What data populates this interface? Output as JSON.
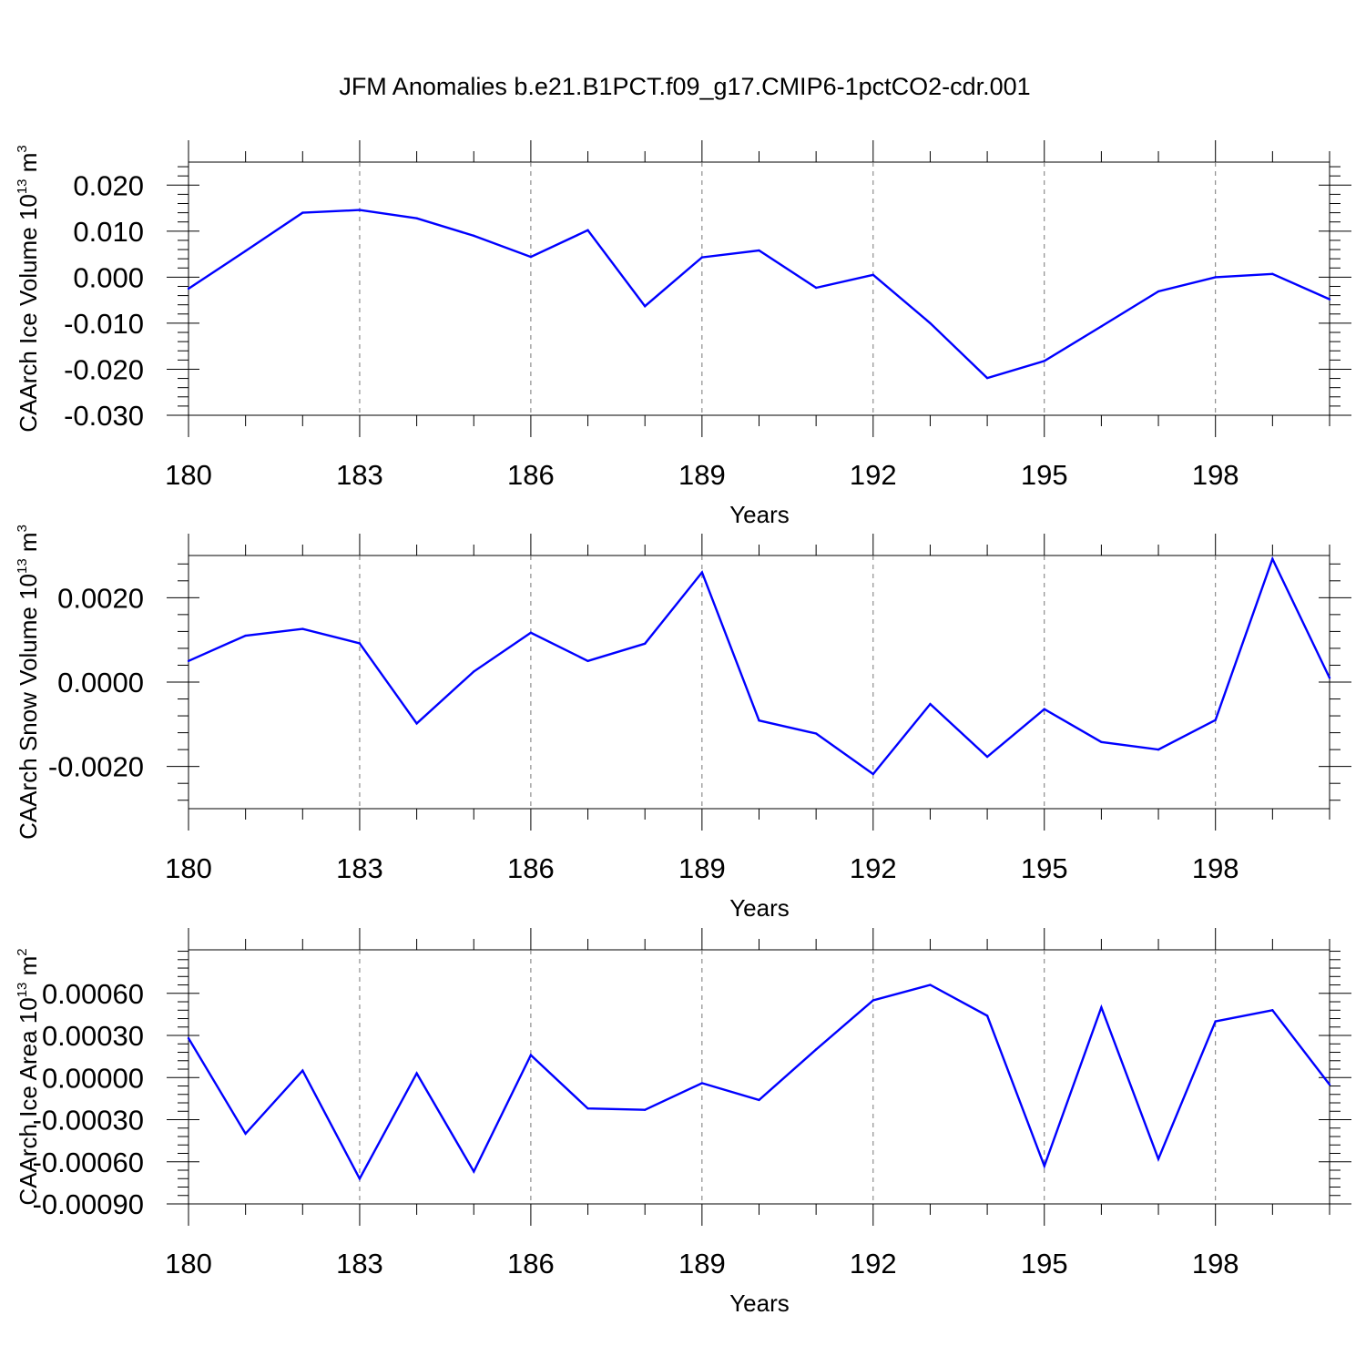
{
  "chart_data": {
    "type": "line",
    "title": "JFM Anomalies b.e21.B1PCT.f09_g17.CMIP6-1pctCO2-cdr.001",
    "line_color": "#0000ff",
    "grid": "vertical dashed lines at major x ticks",
    "panels": [
      {
        "xlabel": "Years",
        "ylabel": "CAArch Ice Volume 10",
        "ylabel_exponent": "13",
        "ylabel_unit": "m",
        "ylabel_unit_exponent": "3",
        "xlim": [
          180,
          200
        ],
        "ylim": [
          -0.03,
          0.025
        ],
        "x_ticks": [
          "180",
          "183",
          "186",
          "189",
          "192",
          "195",
          "198"
        ],
        "y_ticks": [
          "0.020",
          "0.010",
          "0.000",
          "-0.010",
          "-0.020",
          "-0.030"
        ],
        "y_tick_values": [
          0.02,
          0.01,
          0.0,
          -0.01,
          -0.02,
          -0.03
        ],
        "x": [
          180,
          181,
          182,
          183,
          184,
          185,
          186,
          187,
          188,
          189,
          190,
          191,
          192,
          193,
          194,
          195,
          196,
          197,
          198,
          199,
          200
        ],
        "series": [
          {
            "values": [
              -0.0025,
              0.0057,
              0.014,
              0.0146,
              0.0128,
              0.009,
              0.0044,
              0.0102,
              -0.0063,
              0.0043,
              0.0058,
              -0.0023,
              0.0005,
              -0.01,
              -0.0219,
              -0.0182,
              -0.0107,
              -0.0031,
              0.0,
              0.0007,
              -0.0048
            ]
          }
        ]
      },
      {
        "xlabel": "Years",
        "ylabel": "CAArch Snow Volume 10",
        "ylabel_exponent": "13",
        "ylabel_unit": "m",
        "ylabel_unit_exponent": "3",
        "xlim": [
          180,
          200
        ],
        "ylim": [
          -0.003,
          0.003
        ],
        "x_ticks": [
          "180",
          "183",
          "186",
          "189",
          "192",
          "195",
          "198"
        ],
        "y_ticks": [
          "0.0020",
          "0.0000",
          "-0.0020"
        ],
        "y_tick_values": [
          0.002,
          0.0,
          -0.002
        ],
        "x": [
          180,
          181,
          182,
          183,
          184,
          185,
          186,
          187,
          188,
          189,
          190,
          191,
          192,
          193,
          194,
          195,
          196,
          197,
          198,
          199,
          200
        ],
        "series": [
          {
            "values": [
              0.0005,
              0.0011,
              0.00126,
              0.00092,
              -0.00098,
              0.00025,
              0.00117,
              0.0005,
              0.00091,
              0.0026,
              -0.00091,
              -0.00122,
              -0.00218,
              -0.00052,
              -0.00177,
              -0.00064,
              -0.00142,
              -0.0016,
              -0.0009,
              0.00292,
              0.0001
            ]
          }
        ]
      },
      {
        "xlabel": "Years",
        "ylabel": "CAArch Ice Area 10",
        "ylabel_exponent": "13",
        "ylabel_unit": "m",
        "ylabel_unit_exponent": "2",
        "xlim": [
          180,
          200
        ],
        "ylim": [
          -0.0009,
          0.00091
        ],
        "x_ticks": [
          "180",
          "183",
          "186",
          "189",
          "192",
          "195",
          "198"
        ],
        "y_ticks": [
          "0.00060",
          "0.00030",
          "0.00000",
          "-0.00030",
          "-0.00060",
          "-0.00090"
        ],
        "y_tick_values": [
          0.0006,
          0.0003,
          0.0,
          -0.0003,
          -0.0006,
          -0.0009
        ],
        "x": [
          180,
          181,
          182,
          183,
          184,
          185,
          186,
          187,
          188,
          189,
          190,
          191,
          192,
          193,
          194,
          195,
          196,
          197,
          198,
          199,
          200
        ],
        "series": [
          {
            "values": [
              0.00028,
              -0.0004,
              5e-05,
              -0.00072,
              3e-05,
              -0.00067,
              0.00016,
              -0.00022,
              -0.00023,
              -4e-05,
              -0.00016,
              0.0002,
              0.00055,
              0.00066,
              0.00044,
              -0.00063,
              0.0005,
              -0.00058,
              0.0004,
              0.00048,
              -5e-05
            ]
          }
        ]
      }
    ]
  }
}
